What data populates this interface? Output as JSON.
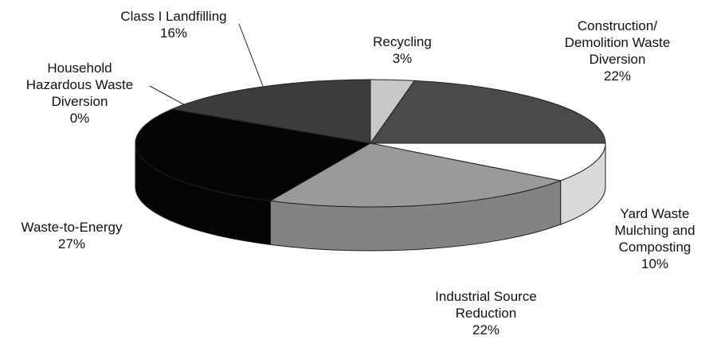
{
  "chart_data": {
    "type": "pie",
    "categories": [
      "Recycling",
      "Construction/ Demolition Waste Diversion",
      "Yard Waste Mulching and Composting",
      "Industrial Source Reduction",
      "Waste-to-Energy",
      "Household Hazardous Waste Diversion",
      "Class I Landfilling"
    ],
    "values": [
      3,
      22,
      10,
      22,
      27,
      0,
      16
    ],
    "value_labels": [
      "3%",
      "22%",
      "10%",
      "22%",
      "27%",
      "0%",
      "16%"
    ],
    "colors": [
      "#c8c8c8",
      "#4a4a4a",
      "#ffffff",
      "#9a9a9a",
      "#050505",
      "#6a6a6a",
      "#3c3c3c"
    ]
  }
}
